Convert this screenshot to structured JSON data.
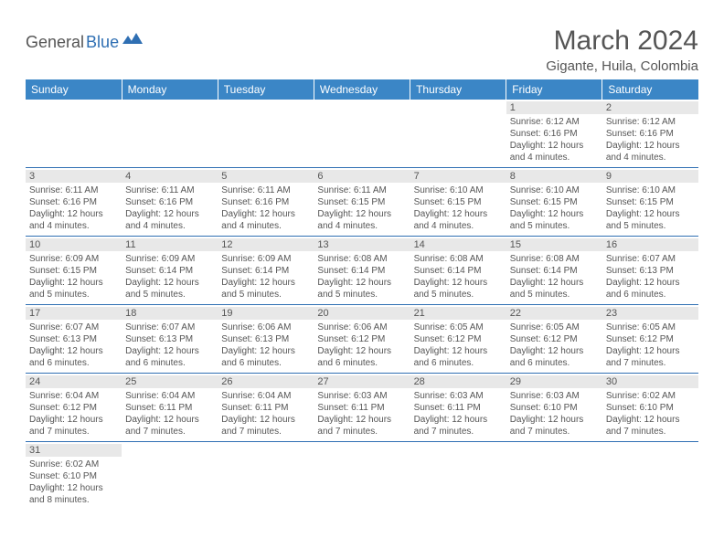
{
  "logo": {
    "text1": "General",
    "text2": "Blue"
  },
  "title": "March 2024",
  "location": "Gigante, Huila, Colombia",
  "colors": {
    "header_bg": "#3b86c6",
    "header_text": "#ffffff",
    "text": "#555555",
    "daynum_bg": "#e8e8e8",
    "row_border": "#2f6fb3",
    "logo_accent": "#2f6fb3"
  },
  "day_headers": [
    "Sunday",
    "Monday",
    "Tuesday",
    "Wednesday",
    "Thursday",
    "Friday",
    "Saturday"
  ],
  "weeks": [
    [
      null,
      null,
      null,
      null,
      null,
      {
        "n": "1",
        "sunrise": "Sunrise: 6:12 AM",
        "sunset": "Sunset: 6:16 PM",
        "day1": "Daylight: 12 hours",
        "day2": "and 4 minutes."
      },
      {
        "n": "2",
        "sunrise": "Sunrise: 6:12 AM",
        "sunset": "Sunset: 6:16 PM",
        "day1": "Daylight: 12 hours",
        "day2": "and 4 minutes."
      }
    ],
    [
      {
        "n": "3",
        "sunrise": "Sunrise: 6:11 AM",
        "sunset": "Sunset: 6:16 PM",
        "day1": "Daylight: 12 hours",
        "day2": "and 4 minutes."
      },
      {
        "n": "4",
        "sunrise": "Sunrise: 6:11 AM",
        "sunset": "Sunset: 6:16 PM",
        "day1": "Daylight: 12 hours",
        "day2": "and 4 minutes."
      },
      {
        "n": "5",
        "sunrise": "Sunrise: 6:11 AM",
        "sunset": "Sunset: 6:16 PM",
        "day1": "Daylight: 12 hours",
        "day2": "and 4 minutes."
      },
      {
        "n": "6",
        "sunrise": "Sunrise: 6:11 AM",
        "sunset": "Sunset: 6:15 PM",
        "day1": "Daylight: 12 hours",
        "day2": "and 4 minutes."
      },
      {
        "n": "7",
        "sunrise": "Sunrise: 6:10 AM",
        "sunset": "Sunset: 6:15 PM",
        "day1": "Daylight: 12 hours",
        "day2": "and 4 minutes."
      },
      {
        "n": "8",
        "sunrise": "Sunrise: 6:10 AM",
        "sunset": "Sunset: 6:15 PM",
        "day1": "Daylight: 12 hours",
        "day2": "and 5 minutes."
      },
      {
        "n": "9",
        "sunrise": "Sunrise: 6:10 AM",
        "sunset": "Sunset: 6:15 PM",
        "day1": "Daylight: 12 hours",
        "day2": "and 5 minutes."
      }
    ],
    [
      {
        "n": "10",
        "sunrise": "Sunrise: 6:09 AM",
        "sunset": "Sunset: 6:15 PM",
        "day1": "Daylight: 12 hours",
        "day2": "and 5 minutes."
      },
      {
        "n": "11",
        "sunrise": "Sunrise: 6:09 AM",
        "sunset": "Sunset: 6:14 PM",
        "day1": "Daylight: 12 hours",
        "day2": "and 5 minutes."
      },
      {
        "n": "12",
        "sunrise": "Sunrise: 6:09 AM",
        "sunset": "Sunset: 6:14 PM",
        "day1": "Daylight: 12 hours",
        "day2": "and 5 minutes."
      },
      {
        "n": "13",
        "sunrise": "Sunrise: 6:08 AM",
        "sunset": "Sunset: 6:14 PM",
        "day1": "Daylight: 12 hours",
        "day2": "and 5 minutes."
      },
      {
        "n": "14",
        "sunrise": "Sunrise: 6:08 AM",
        "sunset": "Sunset: 6:14 PM",
        "day1": "Daylight: 12 hours",
        "day2": "and 5 minutes."
      },
      {
        "n": "15",
        "sunrise": "Sunrise: 6:08 AM",
        "sunset": "Sunset: 6:14 PM",
        "day1": "Daylight: 12 hours",
        "day2": "and 5 minutes."
      },
      {
        "n": "16",
        "sunrise": "Sunrise: 6:07 AM",
        "sunset": "Sunset: 6:13 PM",
        "day1": "Daylight: 12 hours",
        "day2": "and 6 minutes."
      }
    ],
    [
      {
        "n": "17",
        "sunrise": "Sunrise: 6:07 AM",
        "sunset": "Sunset: 6:13 PM",
        "day1": "Daylight: 12 hours",
        "day2": "and 6 minutes."
      },
      {
        "n": "18",
        "sunrise": "Sunrise: 6:07 AM",
        "sunset": "Sunset: 6:13 PM",
        "day1": "Daylight: 12 hours",
        "day2": "and 6 minutes."
      },
      {
        "n": "19",
        "sunrise": "Sunrise: 6:06 AM",
        "sunset": "Sunset: 6:13 PM",
        "day1": "Daylight: 12 hours",
        "day2": "and 6 minutes."
      },
      {
        "n": "20",
        "sunrise": "Sunrise: 6:06 AM",
        "sunset": "Sunset: 6:12 PM",
        "day1": "Daylight: 12 hours",
        "day2": "and 6 minutes."
      },
      {
        "n": "21",
        "sunrise": "Sunrise: 6:05 AM",
        "sunset": "Sunset: 6:12 PM",
        "day1": "Daylight: 12 hours",
        "day2": "and 6 minutes."
      },
      {
        "n": "22",
        "sunrise": "Sunrise: 6:05 AM",
        "sunset": "Sunset: 6:12 PM",
        "day1": "Daylight: 12 hours",
        "day2": "and 6 minutes."
      },
      {
        "n": "23",
        "sunrise": "Sunrise: 6:05 AM",
        "sunset": "Sunset: 6:12 PM",
        "day1": "Daylight: 12 hours",
        "day2": "and 7 minutes."
      }
    ],
    [
      {
        "n": "24",
        "sunrise": "Sunrise: 6:04 AM",
        "sunset": "Sunset: 6:12 PM",
        "day1": "Daylight: 12 hours",
        "day2": "and 7 minutes."
      },
      {
        "n": "25",
        "sunrise": "Sunrise: 6:04 AM",
        "sunset": "Sunset: 6:11 PM",
        "day1": "Daylight: 12 hours",
        "day2": "and 7 minutes."
      },
      {
        "n": "26",
        "sunrise": "Sunrise: 6:04 AM",
        "sunset": "Sunset: 6:11 PM",
        "day1": "Daylight: 12 hours",
        "day2": "and 7 minutes."
      },
      {
        "n": "27",
        "sunrise": "Sunrise: 6:03 AM",
        "sunset": "Sunset: 6:11 PM",
        "day1": "Daylight: 12 hours",
        "day2": "and 7 minutes."
      },
      {
        "n": "28",
        "sunrise": "Sunrise: 6:03 AM",
        "sunset": "Sunset: 6:11 PM",
        "day1": "Daylight: 12 hours",
        "day2": "and 7 minutes."
      },
      {
        "n": "29",
        "sunrise": "Sunrise: 6:03 AM",
        "sunset": "Sunset: 6:10 PM",
        "day1": "Daylight: 12 hours",
        "day2": "and 7 minutes."
      },
      {
        "n": "30",
        "sunrise": "Sunrise: 6:02 AM",
        "sunset": "Sunset: 6:10 PM",
        "day1": "Daylight: 12 hours",
        "day2": "and 7 minutes."
      }
    ],
    [
      {
        "n": "31",
        "sunrise": "Sunrise: 6:02 AM",
        "sunset": "Sunset: 6:10 PM",
        "day1": "Daylight: 12 hours",
        "day2": "and 8 minutes."
      },
      null,
      null,
      null,
      null,
      null,
      null
    ]
  ]
}
